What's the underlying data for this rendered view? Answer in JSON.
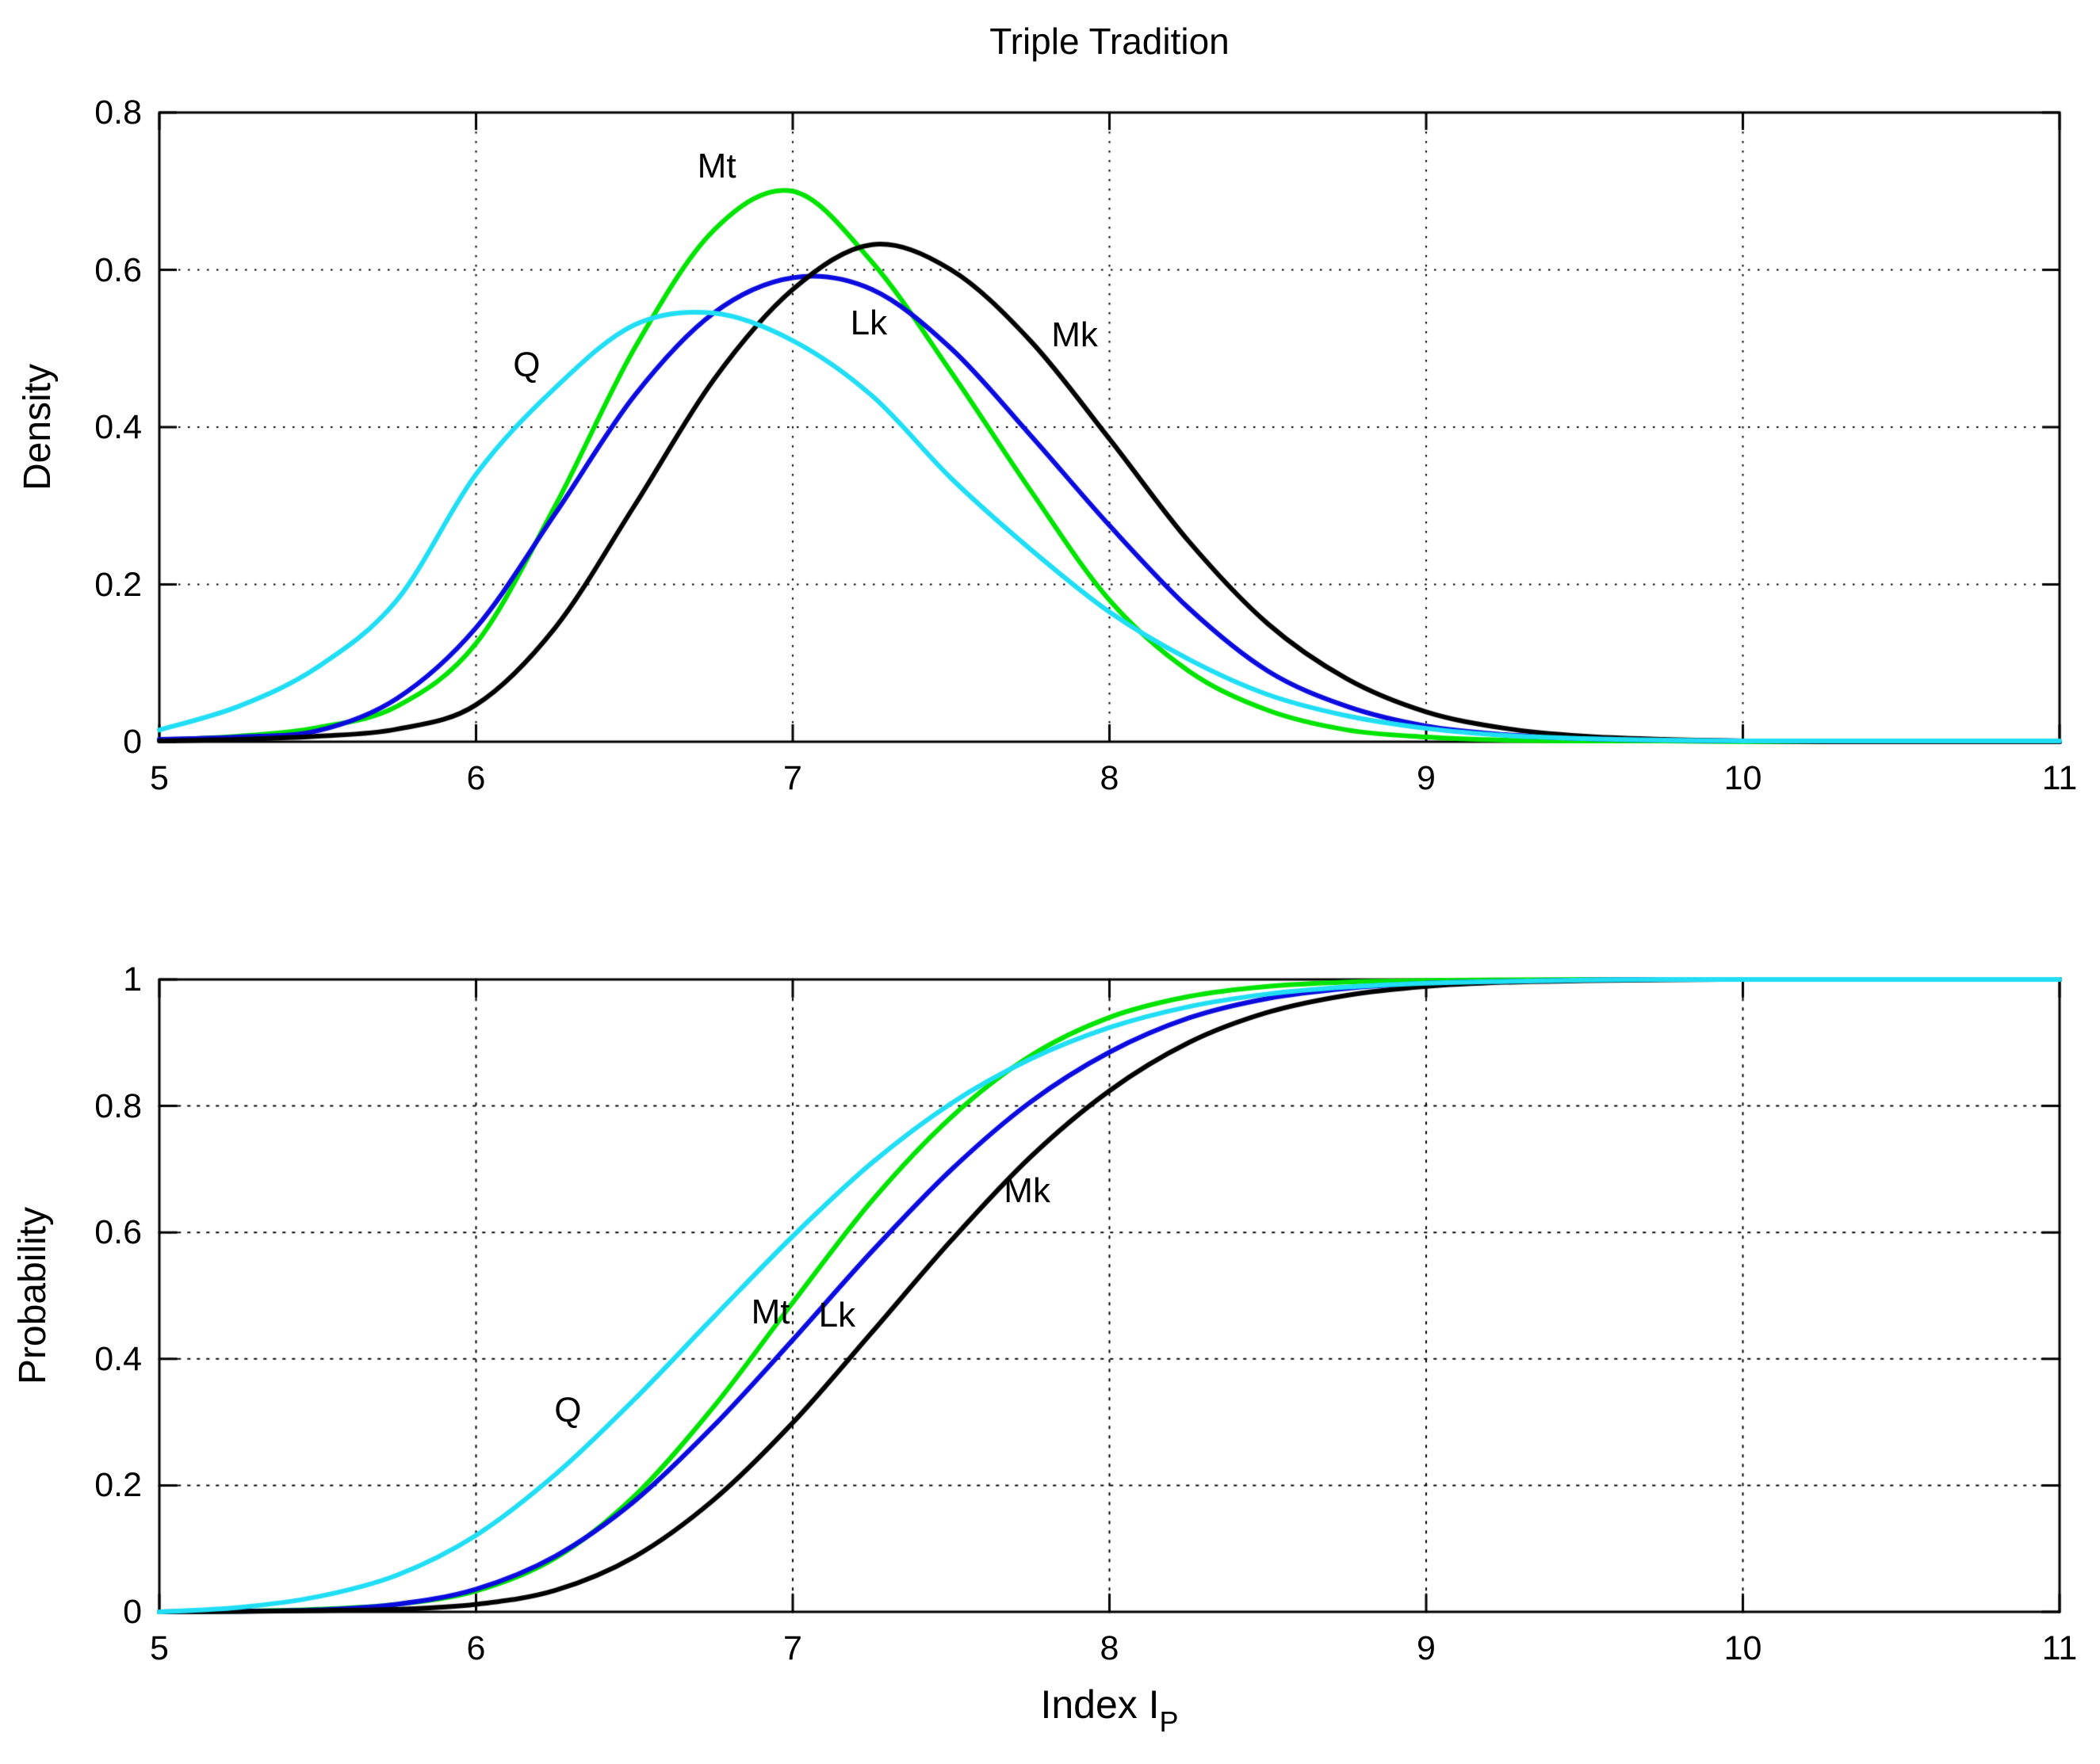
{
  "figure": {
    "background": "#ffffff",
    "axis_color": "#000000",
    "grid_style": "dotted"
  },
  "chart_data": [
    {
      "id": "density",
      "type": "line",
      "title": "Triple Tradition",
      "ylabel": "Density",
      "xlabel": "",
      "xlim": [
        5,
        11
      ],
      "ylim": [
        0,
        0.8
      ],
      "xticks": [
        5,
        6,
        7,
        8,
        9,
        10,
        11
      ],
      "yticks": [
        0,
        0.2,
        0.4,
        0.6,
        0.8
      ],
      "grid": true,
      "legend_position": "inline-labels",
      "x": [
        5,
        5.25,
        5.5,
        5.75,
        6,
        6.25,
        6.5,
        6.75,
        7,
        7.25,
        7.5,
        7.75,
        8,
        8.25,
        8.5,
        8.75,
        9,
        9.25,
        9.5,
        9.75,
        10,
        10.25,
        10.5,
        10.75,
        11
      ],
      "series": [
        {
          "name": "Mt",
          "color": "#00e400",
          "values": [
            0.002,
            0.007,
            0.018,
            0.045,
            0.125,
            0.3,
            0.5,
            0.65,
            0.7,
            0.61,
            0.47,
            0.32,
            0.18,
            0.09,
            0.04,
            0.015,
            0.006,
            0.002,
            0.001,
            0.001,
            0,
            0,
            0,
            0,
            0
          ],
          "peak": {
            "x": 6.95,
            "y": 0.705
          },
          "label": {
            "text": "Mt",
            "x": 6.76,
            "y": 0.731
          }
        },
        {
          "name": "Lk",
          "color": "#0b0be0",
          "values": [
            0.003,
            0.006,
            0.014,
            0.055,
            0.145,
            0.29,
            0.44,
            0.545,
            0.59,
            0.575,
            0.5,
            0.39,
            0.275,
            0.17,
            0.09,
            0.045,
            0.02,
            0.009,
            0.004,
            0.002,
            0.001,
            0.001,
            0,
            0,
            0
          ],
          "peak": {
            "x": 7.05,
            "y": 0.59
          },
          "label": {
            "text": "Lk",
            "x": 7.24,
            "y": 0.532
          }
        },
        {
          "name": "Mk",
          "color": "#000000",
          "values": [
            0.001,
            0.003,
            0.007,
            0.016,
            0.047,
            0.145,
            0.3,
            0.46,
            0.575,
            0.632,
            0.6,
            0.51,
            0.385,
            0.255,
            0.15,
            0.08,
            0.038,
            0.017,
            0.007,
            0.003,
            0.001,
            0,
            0,
            0,
            0
          ],
          "peak": {
            "x": 7.25,
            "y": 0.632
          },
          "label": {
            "text": "Mk",
            "x": 7.89,
            "y": 0.517
          }
        },
        {
          "name": "Q",
          "color": "#1fdef5",
          "values": [
            0.015,
            0.045,
            0.095,
            0.18,
            0.34,
            0.45,
            0.53,
            0.545,
            0.51,
            0.44,
            0.335,
            0.245,
            0.165,
            0.105,
            0.06,
            0.033,
            0.017,
            0.008,
            0.004,
            0.002,
            0.001,
            0.001,
            0.001,
            0.001,
            0.001
          ],
          "peak": {
            "x": 6.65,
            "y": 0.545
          },
          "label": {
            "text": "Q",
            "x": 6.16,
            "y": 0.479
          }
        }
      ]
    },
    {
      "id": "probability",
      "type": "line",
      "title": "",
      "ylabel": "Probability",
      "xlabel": "Index I",
      "xlabel_sub": "P",
      "xlim": [
        5,
        11
      ],
      "ylim": [
        0,
        1
      ],
      "xticks": [
        5,
        6,
        7,
        8,
        9,
        10,
        11
      ],
      "yticks": [
        0,
        0.2,
        0.4,
        0.6,
        0.8,
        1
      ],
      "grid": true,
      "legend_position": "inline-labels",
      "x": [
        5,
        5.25,
        5.5,
        5.75,
        6,
        6.25,
        6.5,
        6.75,
        7,
        7.25,
        7.5,
        7.75,
        8,
        8.25,
        8.5,
        8.75,
        9,
        9.25,
        9.5,
        9.75,
        10,
        10.25,
        10.5,
        10.75,
        11
      ],
      "series": [
        {
          "name": "Mt",
          "color": "#00e400",
          "values": [
            0,
            0.001,
            0.004,
            0.012,
            0.033,
            0.085,
            0.183,
            0.324,
            0.489,
            0.65,
            0.782,
            0.879,
            0.94,
            0.973,
            0.989,
            0.996,
            0.9985,
            0.9995,
            1,
            1,
            1,
            1,
            1,
            1,
            1
          ],
          "label": {
            "text": "Mt",
            "x": 6.93,
            "y": 0.474
          }
        },
        {
          "name": "Lk",
          "color": "#0b0be0",
          "values": [
            0,
            0.001,
            0.003,
            0.012,
            0.036,
            0.088,
            0.175,
            0.294,
            0.43,
            0.57,
            0.699,
            0.806,
            0.885,
            0.939,
            0.97,
            0.986,
            0.994,
            0.997,
            0.999,
            1,
            1,
            1,
            1,
            1,
            1
          ],
          "label": {
            "text": "Lk",
            "x": 7.14,
            "y": 0.469
          }
        },
        {
          "name": "Mk",
          "color": "#000000",
          "values": [
            0,
            0.0005,
            0.002,
            0.004,
            0.012,
            0.034,
            0.087,
            0.177,
            0.299,
            0.442,
            0.587,
            0.719,
            0.824,
            0.9,
            0.948,
            0.975,
            0.989,
            0.9955,
            0.998,
            0.9995,
            1,
            1,
            1,
            1,
            1
          ],
          "label": {
            "text": "Mk",
            "x": 7.74,
            "y": 0.665
          }
        },
        {
          "name": "Q",
          "color": "#1fdef5",
          "values": [
            0,
            0.007,
            0.024,
            0.058,
            0.121,
            0.217,
            0.336,
            0.466,
            0.594,
            0.71,
            0.804,
            0.874,
            0.924,
            0.957,
            0.977,
            0.988,
            0.994,
            0.997,
            0.999,
            1,
            1,
            1,
            1,
            1,
            1
          ],
          "label": {
            "text": "Q",
            "x": 6.29,
            "y": 0.318
          }
        }
      ]
    }
  ]
}
